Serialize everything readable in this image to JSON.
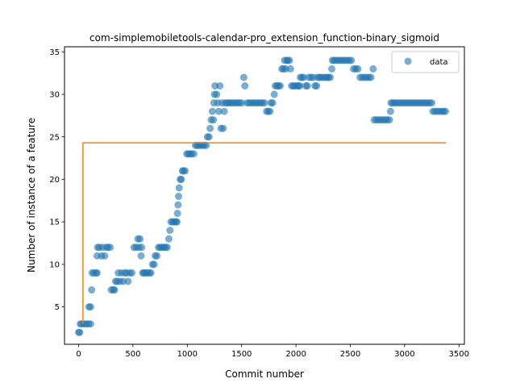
{
  "chart_data": {
    "type": "scatter",
    "title": "com-simplemobiletools-calendar-pro_extension_function-binary_sigmoid",
    "xlabel": "Commit number",
    "ylabel": "Number of instance of a feature",
    "xlim": [
      -130,
      3550
    ],
    "ylim": [
      0.6,
      35.6
    ],
    "xticks": [
      0,
      500,
      1000,
      1500,
      2000,
      2500,
      3000,
      3500
    ],
    "yticks": [
      5,
      10,
      15,
      20,
      25,
      30,
      35
    ],
    "legend": {
      "position": "top-right",
      "entries": [
        "data"
      ]
    },
    "colors": {
      "data": "#1f77b4",
      "fit": "#ff7f0e"
    },
    "series": [
      {
        "name": "data",
        "points": [
          [
            0,
            2
          ],
          [
            10,
            2
          ],
          [
            15,
            3
          ],
          [
            30,
            3
          ],
          [
            50,
            3
          ],
          [
            70,
            3
          ],
          [
            90,
            3
          ],
          [
            110,
            3
          ],
          [
            95,
            5
          ],
          [
            110,
            5
          ],
          [
            120,
            7
          ],
          [
            125,
            9
          ],
          [
            140,
            9
          ],
          [
            160,
            9
          ],
          [
            170,
            9
          ],
          [
            170,
            11
          ],
          [
            175,
            12
          ],
          [
            190,
            12
          ],
          [
            210,
            11
          ],
          [
            220,
            12
          ],
          [
            240,
            11
          ],
          [
            255,
            12
          ],
          [
            270,
            12
          ],
          [
            290,
            12
          ],
          [
            300,
            7
          ],
          [
            320,
            7
          ],
          [
            330,
            7
          ],
          [
            340,
            8
          ],
          [
            355,
            8
          ],
          [
            365,
            9
          ],
          [
            380,
            8
          ],
          [
            395,
            9
          ],
          [
            410,
            8
          ],
          [
            425,
            9
          ],
          [
            440,
            9
          ],
          [
            455,
            8
          ],
          [
            470,
            9
          ],
          [
            490,
            9
          ],
          [
            510,
            12
          ],
          [
            530,
            12
          ],
          [
            545,
            13
          ],
          [
            555,
            12
          ],
          [
            565,
            13
          ],
          [
            575,
            11
          ],
          [
            580,
            12
          ],
          [
            590,
            9
          ],
          [
            600,
            9
          ],
          [
            615,
            9
          ],
          [
            630,
            9
          ],
          [
            650,
            9
          ],
          [
            665,
            9
          ],
          [
            680,
            10
          ],
          [
            695,
            10
          ],
          [
            705,
            11
          ],
          [
            720,
            11
          ],
          [
            735,
            12
          ],
          [
            750,
            12
          ],
          [
            765,
            12
          ],
          [
            785,
            12
          ],
          [
            800,
            12
          ],
          [
            815,
            12
          ],
          [
            830,
            13
          ],
          [
            840,
            14
          ],
          [
            850,
            15
          ],
          [
            865,
            15
          ],
          [
            880,
            15
          ],
          [
            895,
            15
          ],
          [
            905,
            15
          ],
          [
            910,
            16
          ],
          [
            915,
            17
          ],
          [
            920,
            18
          ],
          [
            925,
            19
          ],
          [
            935,
            20
          ],
          [
            945,
            20
          ],
          [
            955,
            21
          ],
          [
            965,
            21
          ],
          [
            980,
            21
          ],
          [
            995,
            23
          ],
          [
            1010,
            23
          ],
          [
            1025,
            23
          ],
          [
            1040,
            23
          ],
          [
            1060,
            23
          ],
          [
            1075,
            24
          ],
          [
            1090,
            24
          ],
          [
            1105,
            24
          ],
          [
            1120,
            24
          ],
          [
            1140,
            24
          ],
          [
            1155,
            24
          ],
          [
            1175,
            24
          ],
          [
            1185,
            25
          ],
          [
            1200,
            25
          ],
          [
            1210,
            26
          ],
          [
            1220,
            27
          ],
          [
            1230,
            28
          ],
          [
            1240,
            27
          ],
          [
            1245,
            29
          ],
          [
            1250,
            30
          ],
          [
            1255,
            31
          ],
          [
            1270,
            30
          ],
          [
            1280,
            29
          ],
          [
            1290,
            28
          ],
          [
            1300,
            31
          ],
          [
            1310,
            26
          ],
          [
            1320,
            29
          ],
          [
            1330,
            26
          ],
          [
            1340,
            28
          ],
          [
            1350,
            29
          ],
          [
            1365,
            29
          ],
          [
            1385,
            29
          ],
          [
            1400,
            29
          ],
          [
            1420,
            29
          ],
          [
            1440,
            29
          ],
          [
            1460,
            29
          ],
          [
            1480,
            29
          ],
          [
            1500,
            29
          ],
          [
            1520,
            32
          ],
          [
            1530,
            31
          ],
          [
            1550,
            29
          ],
          [
            1570,
            29
          ],
          [
            1590,
            29
          ],
          [
            1610,
            29
          ],
          [
            1630,
            29
          ],
          [
            1650,
            29
          ],
          [
            1670,
            29
          ],
          [
            1690,
            29
          ],
          [
            1710,
            29
          ],
          [
            1730,
            28
          ],
          [
            1745,
            28
          ],
          [
            1760,
            28
          ],
          [
            1770,
            29
          ],
          [
            1785,
            29
          ],
          [
            1800,
            30
          ],
          [
            1810,
            31
          ],
          [
            1825,
            31
          ],
          [
            1840,
            31
          ],
          [
            1855,
            31
          ],
          [
            1870,
            33
          ],
          [
            1885,
            33
          ],
          [
            1895,
            34
          ],
          [
            1905,
            33
          ],
          [
            1915,
            34
          ],
          [
            1925,
            34
          ],
          [
            1940,
            34
          ],
          [
            1950,
            33
          ],
          [
            1960,
            31
          ],
          [
            1975,
            31
          ],
          [
            1990,
            31
          ],
          [
            2010,
            31
          ],
          [
            2025,
            31
          ],
          [
            2035,
            31
          ],
          [
            2040,
            32
          ],
          [
            2055,
            32
          ],
          [
            2070,
            32
          ],
          [
            2090,
            31
          ],
          [
            2105,
            31
          ],
          [
            2120,
            32
          ],
          [
            2140,
            32
          ],
          [
            2160,
            32
          ],
          [
            2175,
            31
          ],
          [
            2190,
            31
          ],
          [
            2200,
            32
          ],
          [
            2215,
            32
          ],
          [
            2230,
            32
          ],
          [
            2250,
            32
          ],
          [
            2270,
            32
          ],
          [
            2285,
            32
          ],
          [
            2300,
            32
          ],
          [
            2315,
            32
          ],
          [
            2330,
            33
          ],
          [
            2335,
            34
          ],
          [
            2350,
            34
          ],
          [
            2370,
            34
          ],
          [
            2390,
            34
          ],
          [
            2410,
            34
          ],
          [
            2430,
            34
          ],
          [
            2450,
            34
          ],
          [
            2470,
            34
          ],
          [
            2490,
            34
          ],
          [
            2510,
            34
          ],
          [
            2530,
            33
          ],
          [
            2550,
            33
          ],
          [
            2570,
            33
          ],
          [
            2590,
            32
          ],
          [
            2610,
            32
          ],
          [
            2630,
            32
          ],
          [
            2650,
            32
          ],
          [
            2670,
            32
          ],
          [
            2690,
            32
          ],
          [
            2710,
            33
          ],
          [
            2720,
            27
          ],
          [
            2740,
            27
          ],
          [
            2760,
            27
          ],
          [
            2780,
            27
          ],
          [
            2800,
            27
          ],
          [
            2820,
            27
          ],
          [
            2840,
            27
          ],
          [
            2860,
            27
          ],
          [
            2870,
            28
          ],
          [
            2875,
            29
          ],
          [
            2890,
            29
          ],
          [
            2910,
            29
          ],
          [
            2930,
            29
          ],
          [
            2950,
            29
          ],
          [
            2970,
            29
          ],
          [
            2990,
            29
          ],
          [
            3010,
            29
          ],
          [
            3030,
            29
          ],
          [
            3050,
            29
          ],
          [
            3070,
            29
          ],
          [
            3090,
            29
          ],
          [
            3110,
            29
          ],
          [
            3130,
            29
          ],
          [
            3150,
            29
          ],
          [
            3170,
            29
          ],
          [
            3190,
            29
          ],
          [
            3210,
            29
          ],
          [
            3230,
            29
          ],
          [
            3250,
            29
          ],
          [
            3260,
            28
          ],
          [
            3280,
            28
          ],
          [
            3300,
            28
          ],
          [
            3320,
            28
          ],
          [
            3340,
            28
          ],
          [
            3360,
            28
          ],
          [
            3375,
            28
          ]
        ]
      },
      {
        "points": [
          [
            40,
            3
          ],
          [
            40,
            24.3
          ],
          [
            3380,
            24.3
          ]
        ]
      }
    ]
  }
}
